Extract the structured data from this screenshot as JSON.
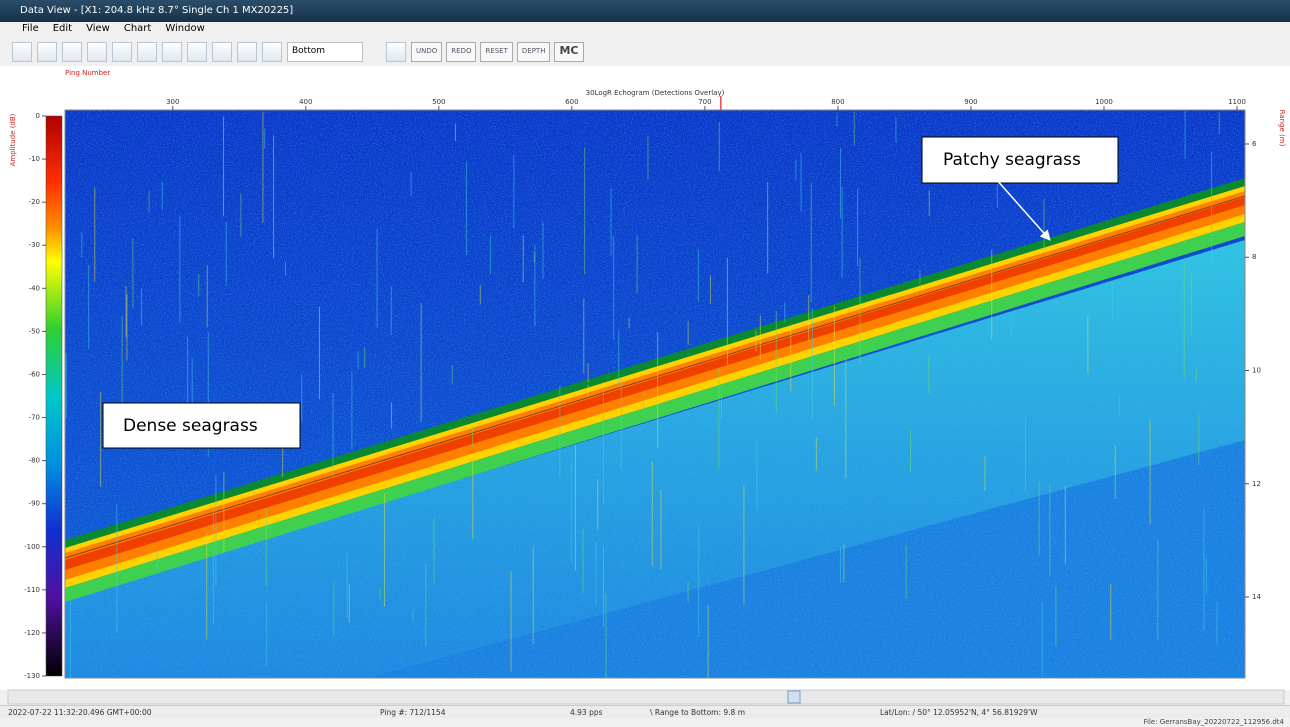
{
  "window": {
    "title": "Data View - [X1: 204.8 kHz 8.7° Single Ch 1 MX20225]",
    "menu": [
      "File",
      "Edit",
      "View",
      "Chart",
      "Window"
    ]
  },
  "toolbar": {
    "mode": "Bottom",
    "buttons": [
      "UNDO",
      "REDO",
      "RESET",
      "DEPTH",
      "MC"
    ]
  },
  "echogram": {
    "title": "30LogR Echogram (Detections Overlay)",
    "x_label": "Ping Number",
    "xlim": [
      219,
      1106
    ],
    "xticks": [
      300,
      400,
      500,
      600,
      700,
      800,
      900,
      1000,
      1100
    ],
    "current_ping": 712,
    "amplitude_label": "Amplitude (dB)",
    "amplitude_lim": [
      0,
      -130
    ],
    "amplitude_ticks": [
      0,
      -10,
      -20,
      -30,
      -40,
      -50,
      -60,
      -70,
      -80,
      -90,
      -100,
      -110,
      -120,
      -130
    ],
    "range_label": "Range (m)",
    "range_lim": [
      5.4,
      15.43
    ],
    "range_ticks": [
      6,
      8,
      10,
      12,
      14
    ],
    "annotations": [
      "Dense seagrass",
      "Patchy seagrass"
    ]
  },
  "status_bar": [
    "2022-07-22 11:32:20.496 GMT+00:00",
    "Ping #: 712/1154",
    "4.93 pps",
    "\\ Range to Bottom: 9.8 m",
    "Lat/Lon: / 50° 12.05952'N, 4° 56.81929'W"
  ],
  "file": "File: GerransBay_20220722_112956.dt4"
}
